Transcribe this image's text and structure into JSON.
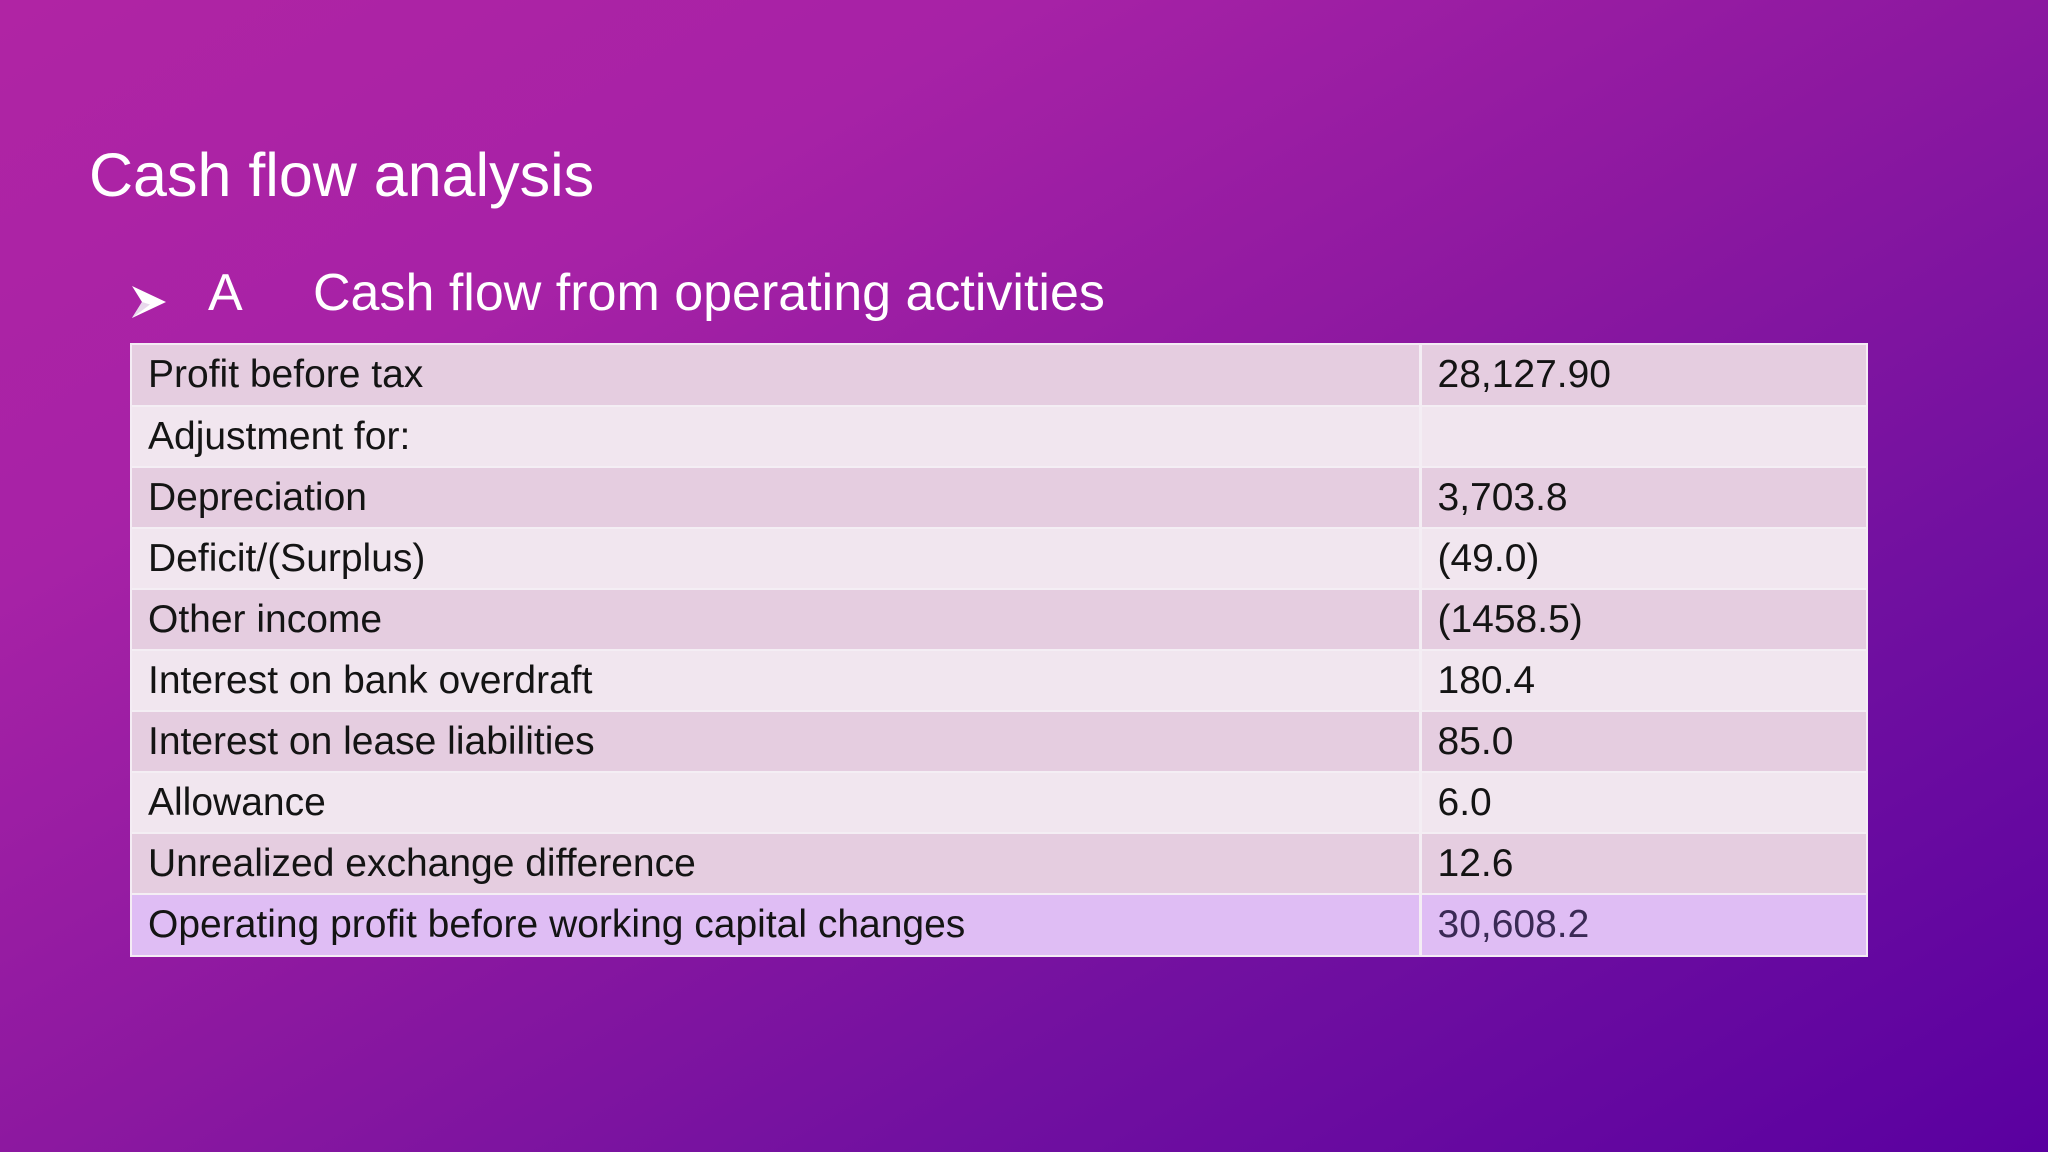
{
  "slide": {
    "title": "Cash flow analysis",
    "bullet": {
      "icon": "arrowhead-bullet-icon",
      "letter": "A",
      "text": "Cash flow from operating activities"
    }
  },
  "table": {
    "rows": [
      {
        "label": "Profit before tax",
        "value": "28,127.90"
      },
      {
        "label": "Adjustment for:",
        "value": ""
      },
      {
        "label": "Depreciation",
        "value": "3,703.8"
      },
      {
        "label": "Deficit/(Surplus)",
        "value": "(49.0)"
      },
      {
        "label": "Other income",
        "value": "(1458.5)"
      },
      {
        "label": "Interest on bank overdraft",
        "value": "180.4"
      },
      {
        "label": "Interest on lease liabilities",
        "value": "85.0"
      },
      {
        "label": "Allowance",
        "value": "6.0"
      },
      {
        "label": "Unrealized exchange difference",
        "value": "12.6"
      },
      {
        "label": "Operating profit before working capital changes",
        "value": "30,608.2"
      }
    ]
  },
  "colors": {
    "background_start": "#b024a4",
    "background_end": "#5a00a0",
    "row_odd": "#e5cde0",
    "row_even": "#f1e6ef",
    "row_total": "#dfbdf4"
  }
}
